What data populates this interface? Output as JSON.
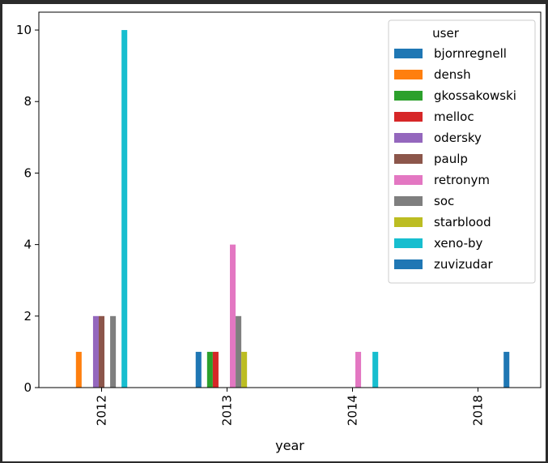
{
  "chart_data": {
    "type": "bar",
    "categories": [
      "2012",
      "2013",
      "2014",
      "2018"
    ],
    "xlabel": "year",
    "ylabel": "",
    "ylim": [
      0,
      10.5
    ],
    "yticks": [
      0,
      2,
      4,
      6,
      8,
      10
    ],
    "grid": false,
    "legend": {
      "title": "user",
      "placement": "upper-right"
    },
    "series": [
      {
        "name": "bjornregnell",
        "color": "#1f77b4",
        "values": [
          0,
          1,
          0,
          0
        ]
      },
      {
        "name": "densh",
        "color": "#ff7f0e",
        "values": [
          1,
          0,
          0,
          0
        ]
      },
      {
        "name": "gkossakowski",
        "color": "#2ca02c",
        "values": [
          0,
          1,
          0,
          0
        ]
      },
      {
        "name": "melloc",
        "color": "#d62728",
        "values": [
          0,
          1,
          0,
          0
        ]
      },
      {
        "name": "odersky",
        "color": "#9467bd",
        "values": [
          2,
          0,
          0,
          0
        ]
      },
      {
        "name": "paulp",
        "color": "#8c564b",
        "values": [
          2,
          0,
          0,
          0
        ]
      },
      {
        "name": "retronym",
        "color": "#e377c2",
        "values": [
          0,
          4,
          1,
          0
        ]
      },
      {
        "name": "soc",
        "color": "#7f7f7f",
        "values": [
          2,
          2,
          0,
          0
        ]
      },
      {
        "name": "starblood",
        "color": "#bcbd22",
        "values": [
          0,
          1,
          0,
          0
        ]
      },
      {
        "name": "xeno-by",
        "color": "#17becf",
        "values": [
          10,
          0,
          1,
          0
        ]
      },
      {
        "name": "zuvizudar",
        "color": "#1f77b4",
        "values": [
          0,
          0,
          0,
          1
        ]
      }
    ]
  }
}
